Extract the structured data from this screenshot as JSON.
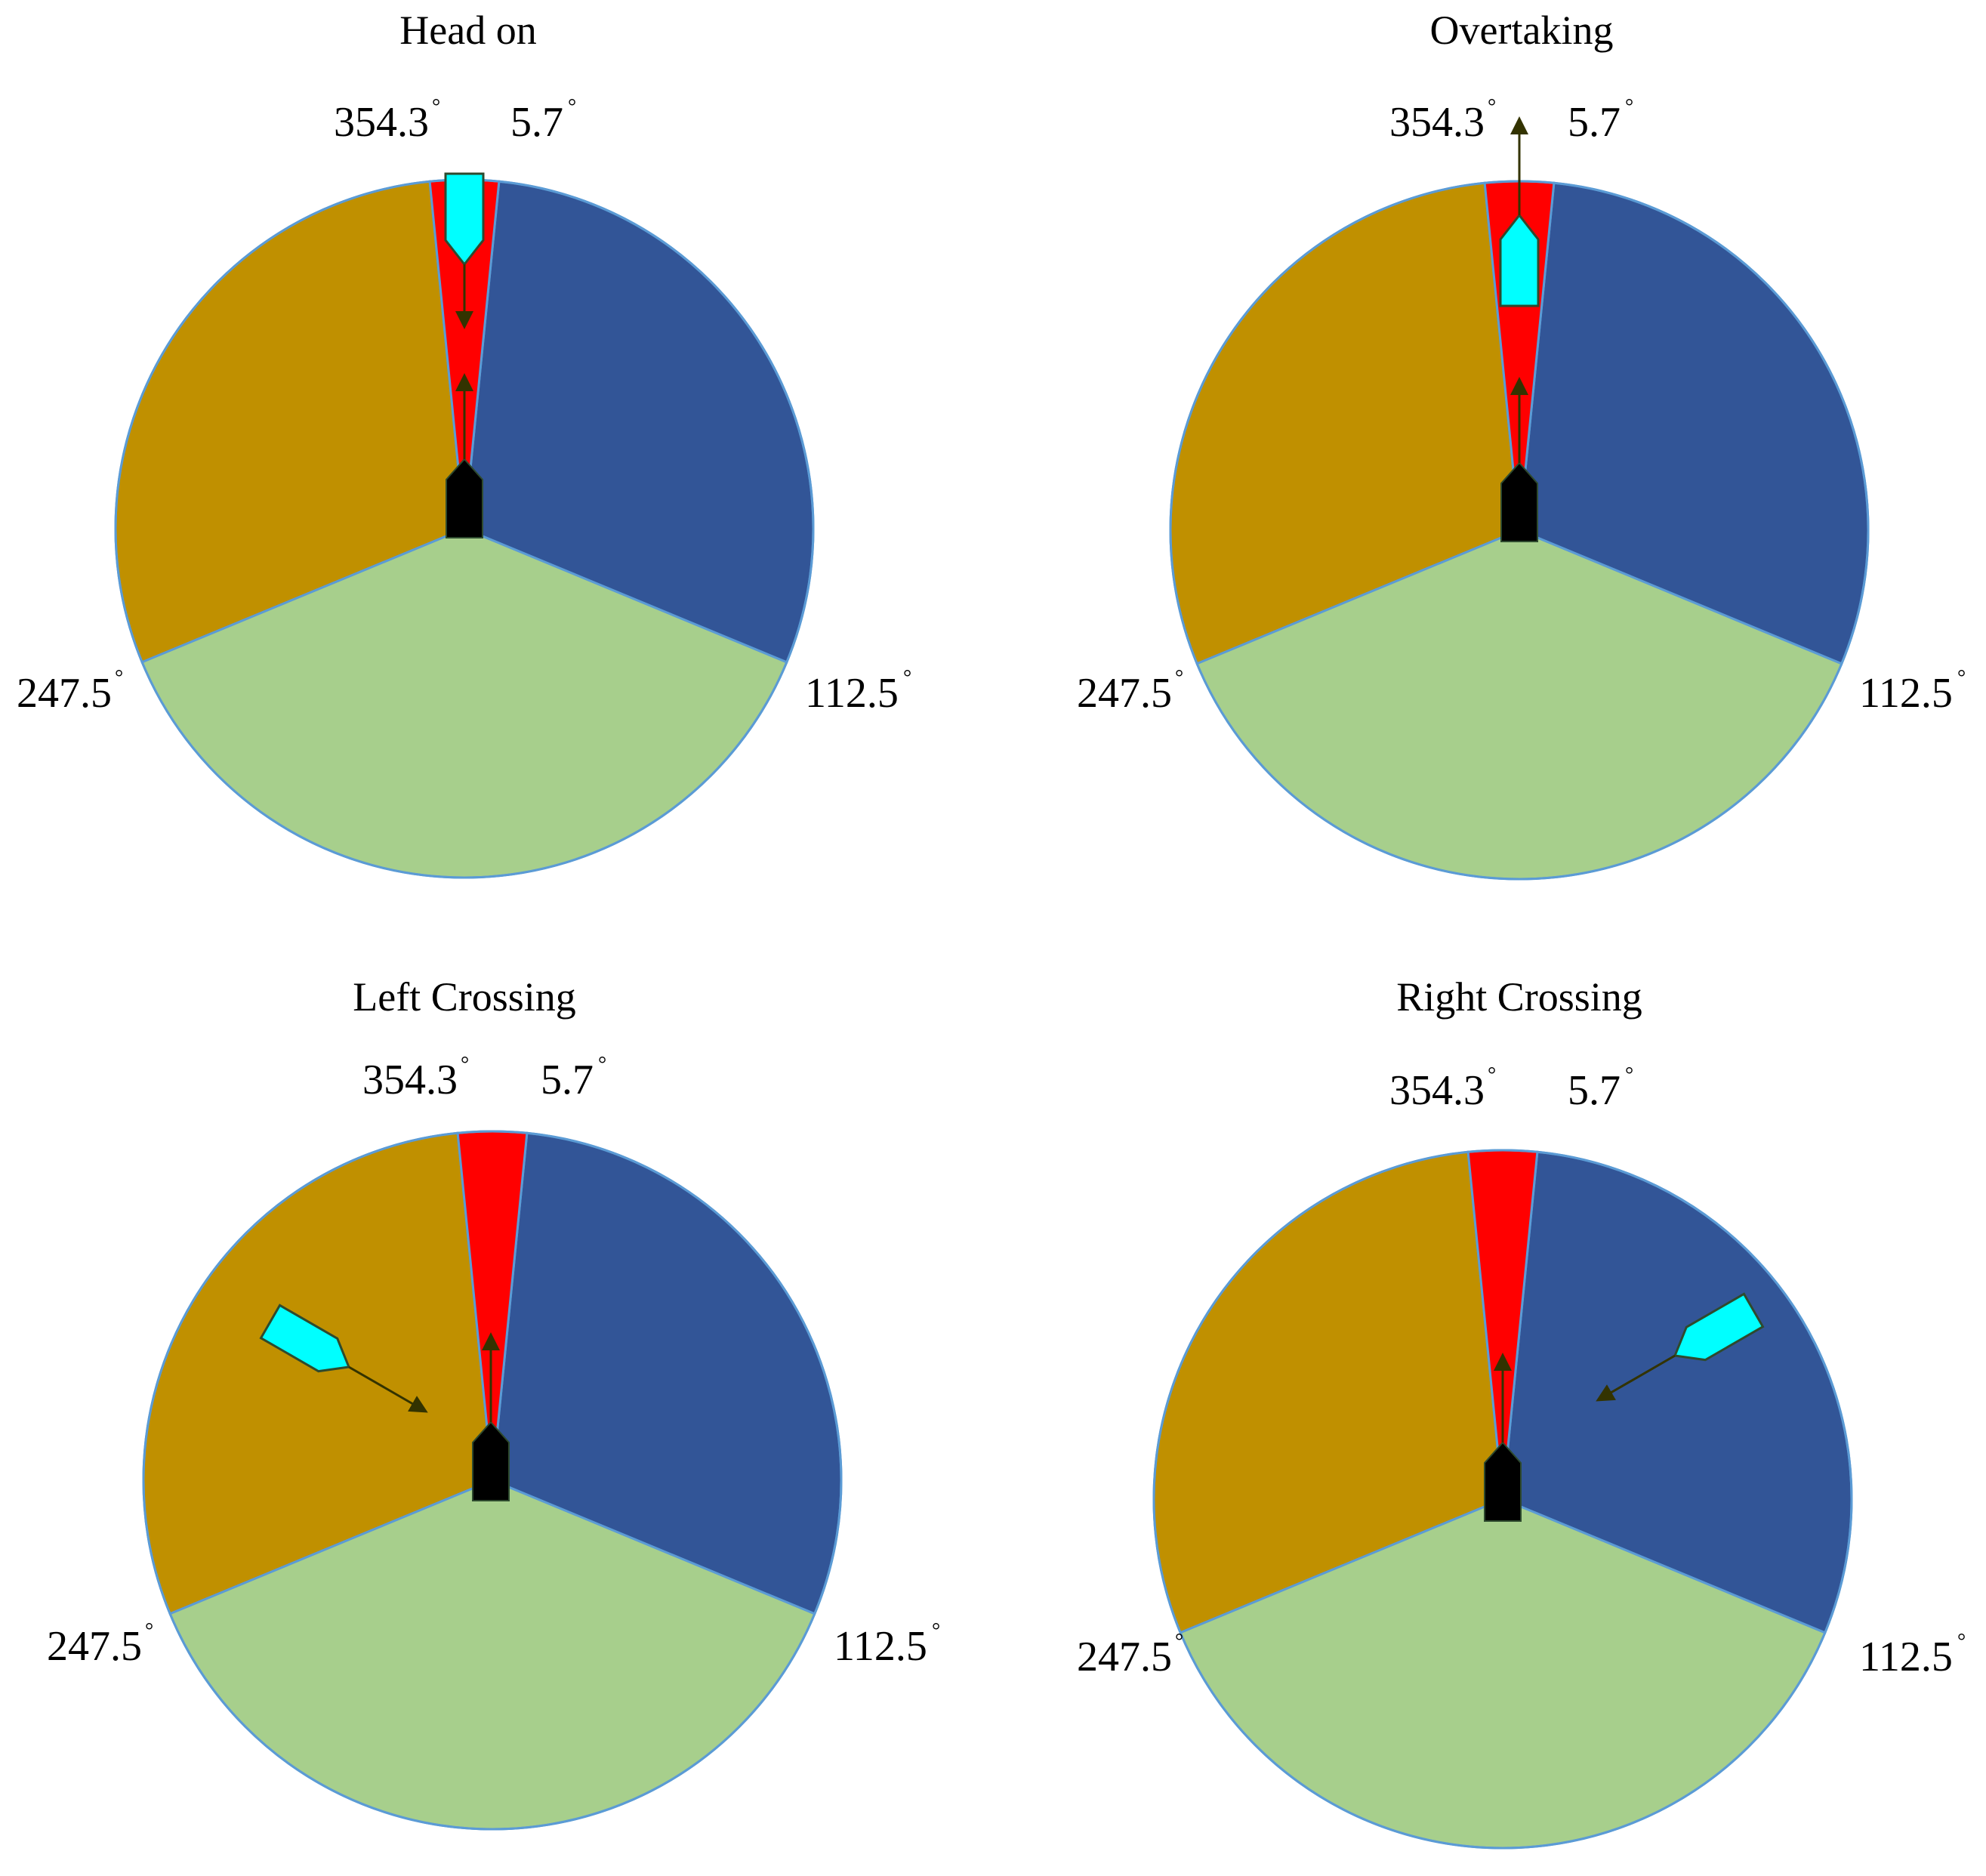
{
  "colors": {
    "head_on_sector": "#ff0000",
    "starboard_sector": "#325597",
    "stern_sector": "#a7cf8c",
    "port_sector": "#c09000",
    "sector_edge": "#5b9bd5",
    "own_ship": "#000000",
    "target_ship": "#00ffff",
    "arrow": "#333300",
    "ship_outline": "#2e4a2e"
  },
  "sector_bounds_deg": {
    "head_on_port": 354.3,
    "head_on_starboard": 5.7,
    "starboard_aft": 112.5,
    "port_aft": 247.5
  },
  "degree_symbol": "°",
  "panels": [
    {
      "id": "head-on",
      "title": "Head on",
      "labels": {
        "a": "354.3",
        "b": "5.7",
        "c": "112.5",
        "d": "247.5"
      },
      "target": {
        "sector": "head-on",
        "course_deg": 180
      }
    },
    {
      "id": "overtaking",
      "title": "Overtaking",
      "labels": {
        "a": "354.3",
        "b": "5.7",
        "c": "112.5",
        "d": "247.5"
      },
      "target": {
        "sector": "head-on",
        "course_deg": 0
      }
    },
    {
      "id": "left-crossing",
      "title": "Left Crossing",
      "labels": {
        "a": "354.3",
        "b": "5.7",
        "c": "112.5",
        "d": "247.5"
      },
      "target": {
        "sector": "port",
        "course_deg": 120
      }
    },
    {
      "id": "right-crossing",
      "title": "Right Crossing",
      "labels": {
        "a": "354.3",
        "b": "5.7",
        "c": "112.5",
        "d": "247.5"
      },
      "target": {
        "sector": "starboard",
        "course_deg": 240
      }
    }
  ]
}
